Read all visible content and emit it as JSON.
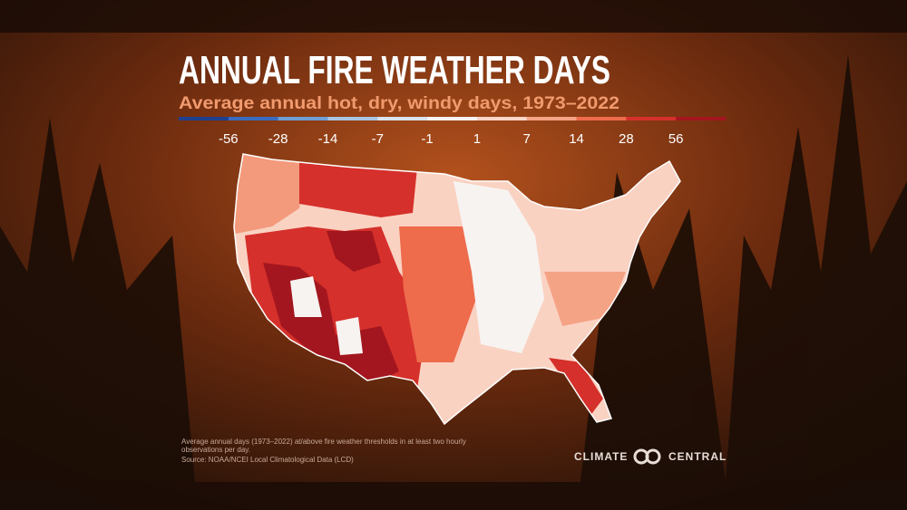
{
  "header": {
    "title": "ANNUAL FIRE WEATHER DAYS",
    "subtitle": "Average annual hot, dry, windy days, 1973–2022"
  },
  "legend": {
    "colors": [
      "#1f3f8f",
      "#3a6cc0",
      "#6f9fd4",
      "#a9c5e3",
      "#d9e3ee",
      "#f7f3f1",
      "#fbd6c8",
      "#f5a385",
      "#ee6b4c",
      "#d5302b",
      "#a3161f"
    ],
    "labels": [
      "-56",
      "-28",
      "-14",
      "-7",
      "-1",
      "1",
      "7",
      "14",
      "28",
      "56"
    ]
  },
  "footer": {
    "note": [
      "Average annual days (1973–2022) at/above fire weather thresholds in at least two hourly",
      "observations per day."
    ],
    "source": "Source: NOAA/NCEI Local Climatological Data (LCD)",
    "logo": [
      "CLIMATE",
      "CENTRAL"
    ]
  }
}
